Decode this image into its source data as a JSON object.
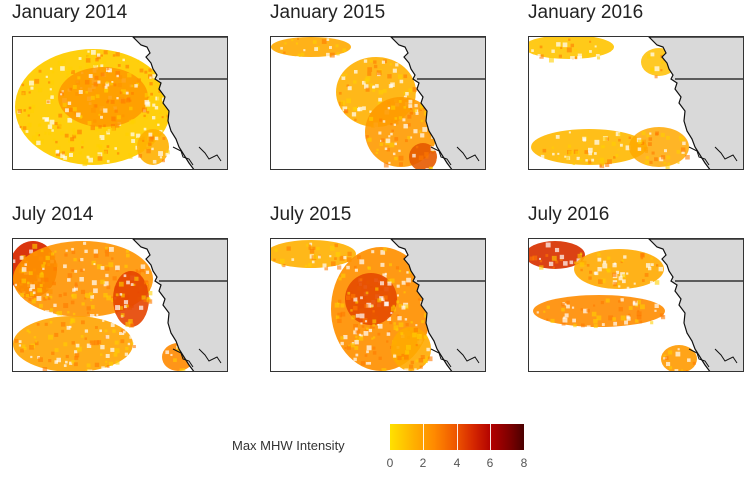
{
  "panels": [
    {
      "title": "January 2014",
      "pattern": "jan2014"
    },
    {
      "title": "January 2015",
      "pattern": "jan2015"
    },
    {
      "title": "January 2016",
      "pattern": "jan2016"
    },
    {
      "title": "July 2014",
      "pattern": "jul2014"
    },
    {
      "title": "July 2015",
      "pattern": "jul2015"
    },
    {
      "title": "July 2016",
      "pattern": "jul2016"
    }
  ],
  "legend": {
    "title": "Max MHW Intensity",
    "ticks": [
      "0",
      "2",
      "4",
      "6",
      "8"
    ],
    "min": 0,
    "max": 8
  },
  "colors": {
    "land": "#d9d9d9",
    "ocean": "#ffffff",
    "coast": "#111111",
    "low": "#ffd400",
    "mid": "#ff8c00",
    "high": "#e23a00",
    "very_high": "#b40000"
  }
}
